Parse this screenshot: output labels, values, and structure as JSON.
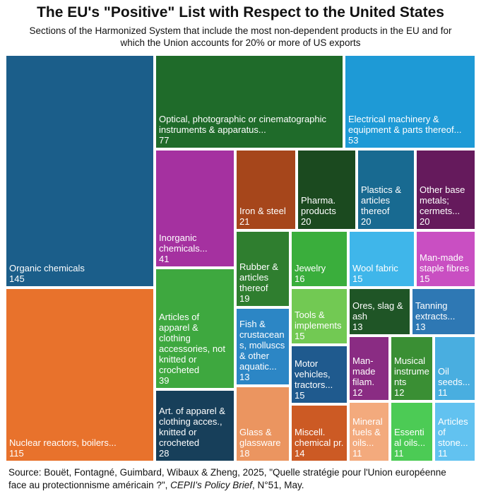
{
  "title": "The EU's \"Positive\" List with Respect to the United States",
  "subtitle_line1": "Sections of the Harmonized System that include the most non-dependent products in the EU and for",
  "subtitle_line2": "which the Union accounts for 20% or more of US exports",
  "source": {
    "prefix": "Source: Bouët, Fontagné, Guimbard, Wibaux & Zheng, 2025, \"Quelle stratégie pour l'Union européenne",
    "line2_start": "face au protectionnisme américain ?\", ",
    "publication": "CEPII's Policy Brief",
    "suffix": ", N°51, May."
  },
  "chart_data": {
    "type": "treemap",
    "title": "The EU's \"Positive\" List with Respect to the United States",
    "items": [
      {
        "label": "Organic chemicals",
        "value": 145,
        "color": "#1B5E8A"
      },
      {
        "label": "Nuclear reactors, boilers...",
        "value": 115,
        "color": "#E8722C"
      },
      {
        "label": "Optical, photographic or cinematographic\ninstruments & apparatus...",
        "value": 77,
        "color": "#1F6B2A"
      },
      {
        "label": "Electrical machinery &\nequipment & parts thereof...",
        "value": 53,
        "color": "#1E9AD6"
      },
      {
        "label": "Inorganic\nchemicals...",
        "value": 41,
        "color": "#A531A0"
      },
      {
        "label": "Articles of\napparel &\nclothing\naccessories, not\nknitted or\ncrocheted",
        "value": 39,
        "color": "#3EA83F"
      },
      {
        "label": "Art. of apparel &\nclothing acces.,\nknitted or\ncrocheted",
        "value": 28,
        "color": "#173F5A"
      },
      {
        "label": "Iron & steel",
        "value": 21,
        "color": "#A6461B"
      },
      {
        "label": "Pharma.\nproducts",
        "value": 20,
        "color": "#1B4A1F"
      },
      {
        "label": "Plastics &\narticles\nthereof",
        "value": 20,
        "color": "#186A91"
      },
      {
        "label": "Other base\nmetals;\ncermets...",
        "value": 20,
        "color": "#651A5C"
      },
      {
        "label": "Rubber &\narticles\nthereof",
        "value": 19,
        "color": "#2F7E2F"
      },
      {
        "label": "Glass &\nglassware",
        "value": 18,
        "color": "#EB9560"
      },
      {
        "label": "Jewelry",
        "value": 16,
        "color": "#3AAE3C"
      },
      {
        "label": "Wool fabric",
        "value": 15,
        "color": "#3FB6EA"
      },
      {
        "label": "Man-made\nstaple fibres",
        "value": 15,
        "color": "#C94FC2"
      },
      {
        "label": "Tools &\nimplements",
        "value": 15,
        "color": "#72C953"
      },
      {
        "label": "Motor\nvehicles,\ntractors...",
        "value": 15,
        "color": "#1F5A8E"
      },
      {
        "label": "Miscell.\nchemical pr.",
        "value": 14,
        "color": "#CC5A24"
      },
      {
        "label": "Fish &\ncrustacean\ns, molluscs\n& other\naquatic...",
        "value": 13,
        "color": "#2C86C5"
      },
      {
        "label": "Ores, slag &\nash",
        "value": 13,
        "color": "#1F5526"
      },
      {
        "label": "Tanning\nextracts...",
        "value": 13,
        "color": "#2E78B4"
      },
      {
        "label": "Man-\nmade\nfilam.",
        "value": 12,
        "color": "#8A2C83"
      },
      {
        "label": "Musical\ninstrume\nnts",
        "value": 12,
        "color": "#3A8F34"
      },
      {
        "label": "Oil\nseeds...",
        "value": 11,
        "color": "#49AEE0"
      },
      {
        "label": "Mineral\nfuels &\noils...",
        "value": 11,
        "color": "#F3AA7D"
      },
      {
        "label": "Essenti\nal oils...",
        "value": 11,
        "color": "#4CCB55"
      },
      {
        "label": "Articles\nof\nstone...",
        "value": 11,
        "color": "#62C2F0"
      }
    ]
  }
}
